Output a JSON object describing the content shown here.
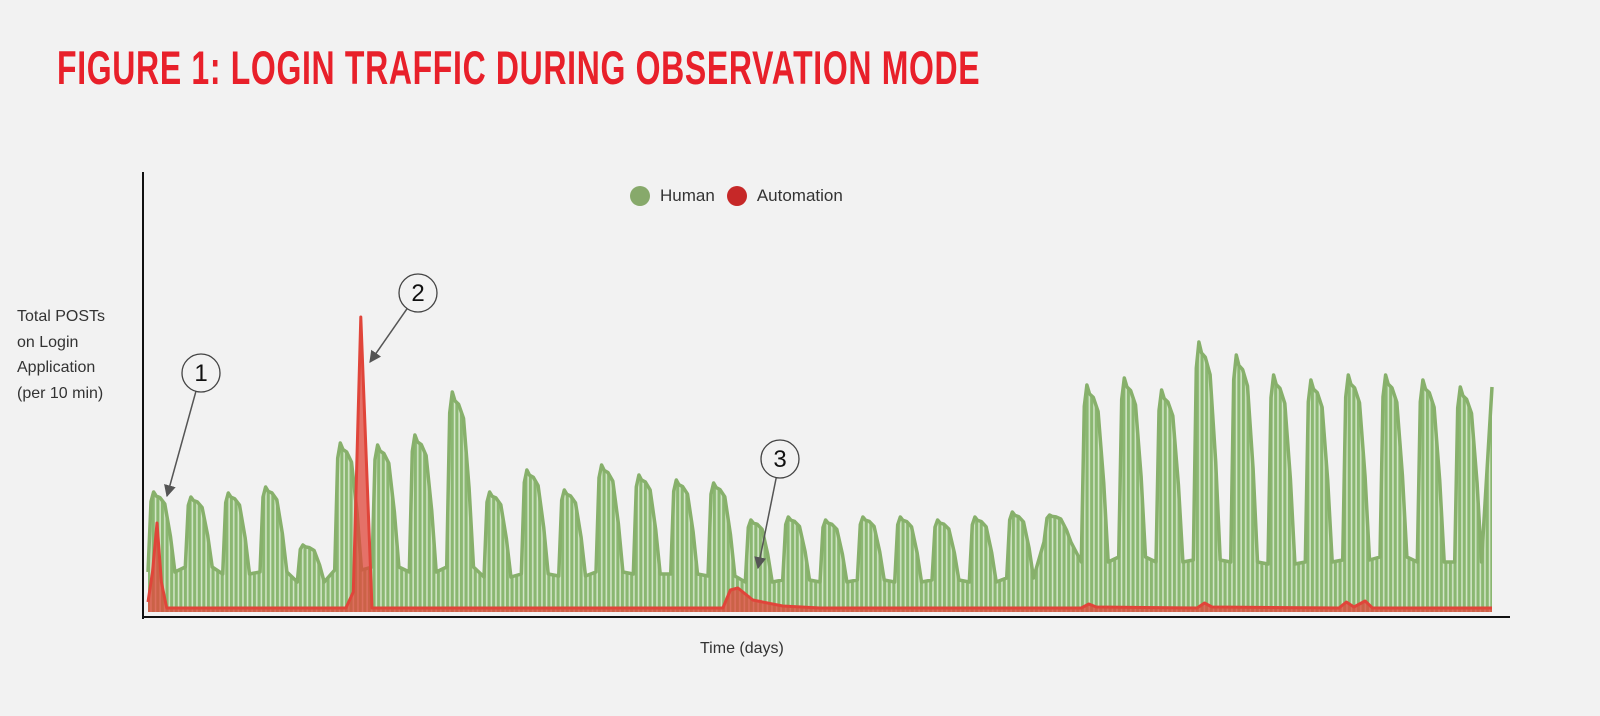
{
  "chart_data": {
    "type": "area",
    "title": "FIGURE 1: LOGIN TRAFFIC DURING OBSERVATION MODE",
    "xlabel": "Time (days)",
    "ylabel_lines": [
      "Total POSTs",
      "on Login",
      "Application",
      "(per 10 min)"
    ],
    "xlim": [
      0,
      36
    ],
    "ylim": [
      0,
      440
    ],
    "grid": false,
    "legend_position": "top-center",
    "colors": {
      "human": "#87b06b",
      "automation": "#e0453a",
      "title": "#e8202a"
    },
    "series": [
      {
        "name": "Human",
        "daily_peaks": [
          120,
          115,
          119,
          125,
          67,
          169,
          167,
          177,
          220,
          120,
          142,
          122,
          147,
          137,
          132,
          129,
          92,
          95,
          92,
          95,
          95,
          92,
          95,
          100,
          97,
          227,
          234,
          222,
          270,
          257,
          237,
          232,
          237,
          237,
          232,
          225
        ],
        "daily_troughs": [
          40,
          45,
          38,
          40,
          30,
          42,
          45,
          40,
          45,
          35,
          38,
          36,
          40,
          38,
          38,
          36,
          30,
          32,
          30,
          32,
          30,
          32,
          30,
          34,
          70,
          50,
          55,
          50,
          52,
          50,
          48,
          50,
          52,
          55,
          50,
          50
        ]
      },
      {
        "name": "Automation",
        "points": [
          [
            0,
            10
          ],
          [
            0.12,
            40
          ],
          [
            0.24,
            89
          ],
          [
            0.36,
            30
          ],
          [
            0.5,
            4
          ],
          [
            5.3,
            4
          ],
          [
            5.5,
            20
          ],
          [
            5.7,
            295
          ],
          [
            5.85,
            150
          ],
          [
            6.0,
            4
          ],
          [
            15.4,
            4
          ],
          [
            15.6,
            22
          ],
          [
            15.8,
            24
          ],
          [
            16.2,
            12
          ],
          [
            17,
            6
          ],
          [
            18,
            4
          ],
          [
            25.0,
            4
          ],
          [
            25.2,
            8
          ],
          [
            25.4,
            5
          ],
          [
            28.1,
            4
          ],
          [
            28.3,
            9
          ],
          [
            28.5,
            5
          ],
          [
            31.9,
            4
          ],
          [
            32.1,
            10
          ],
          [
            32.3,
            5
          ],
          [
            32.6,
            11
          ],
          [
            32.8,
            4
          ],
          [
            36,
            4
          ]
        ]
      }
    ],
    "legend": [
      {
        "name": "Human",
        "color": "#87a96b"
      },
      {
        "name": "Automation",
        "color": "#c62828"
      }
    ],
    "annotations": [
      {
        "label": "1"
      },
      {
        "label": "2"
      },
      {
        "label": "3"
      }
    ]
  }
}
